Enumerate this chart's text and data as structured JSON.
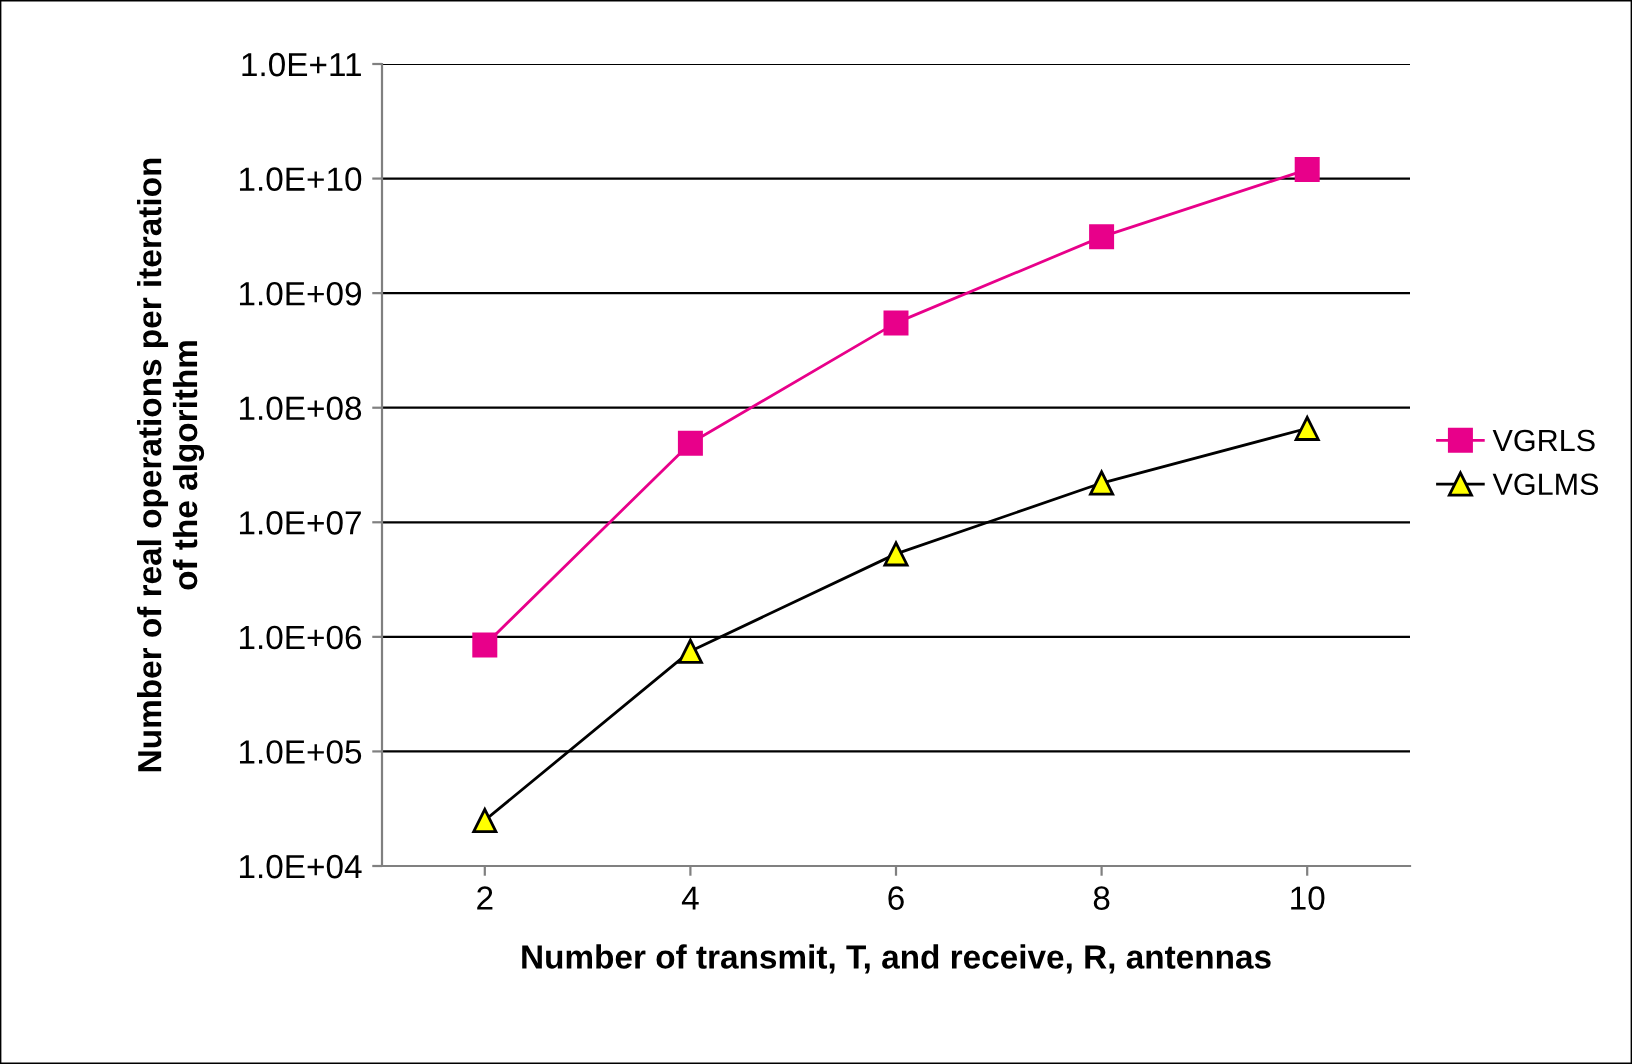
{
  "chart_data": {
    "type": "line",
    "xlabel": "Number of transmit, T, and receive, R, antennas",
    "ylabel": "Number of real operations per iteration\nof the algorithm",
    "categories": [
      "2",
      "4",
      "6",
      "8",
      "10"
    ],
    "series": [
      {
        "name": "VGRLS",
        "color": "#e8008a",
        "marker": "square",
        "colors": [
          "#e8008a",
          "#e8008a",
          "#e8008a",
          "#e8008a",
          "#e8008a"
        ],
        "values": [
          850000,
          49000000,
          550000000,
          3100000000,
          12000000000
        ]
      },
      {
        "name": "VGLMS",
        "color": "#000000",
        "marker": "triangle",
        "colors": [
          "#ffff00",
          "#ffff00",
          "#ffff00",
          "#ffff00",
          "#ffff00"
        ],
        "values": [
          25000,
          750000,
          5300000,
          22000000,
          66000000
        ]
      }
    ],
    "log": "y",
    "ylim": [
      10000,
      100000000000
    ],
    "yticks": [
      {
        "value": 10000,
        "label": "1.0E+04"
      },
      {
        "value": 100000,
        "label": "1.0E+05"
      },
      {
        "value": 1000000,
        "label": "1.0E+06"
      },
      {
        "value": 10000000,
        "label": "1.0E+07"
      },
      {
        "value": 100000000,
        "label": "1.0E+08"
      },
      {
        "value": 1000000000,
        "label": "1.0E+09"
      },
      {
        "value": 10000000000,
        "label": "1.0E+10"
      },
      {
        "value": 100000000000,
        "label": "1.0E+11"
      }
    ],
    "grid": "y",
    "legend": "right"
  }
}
